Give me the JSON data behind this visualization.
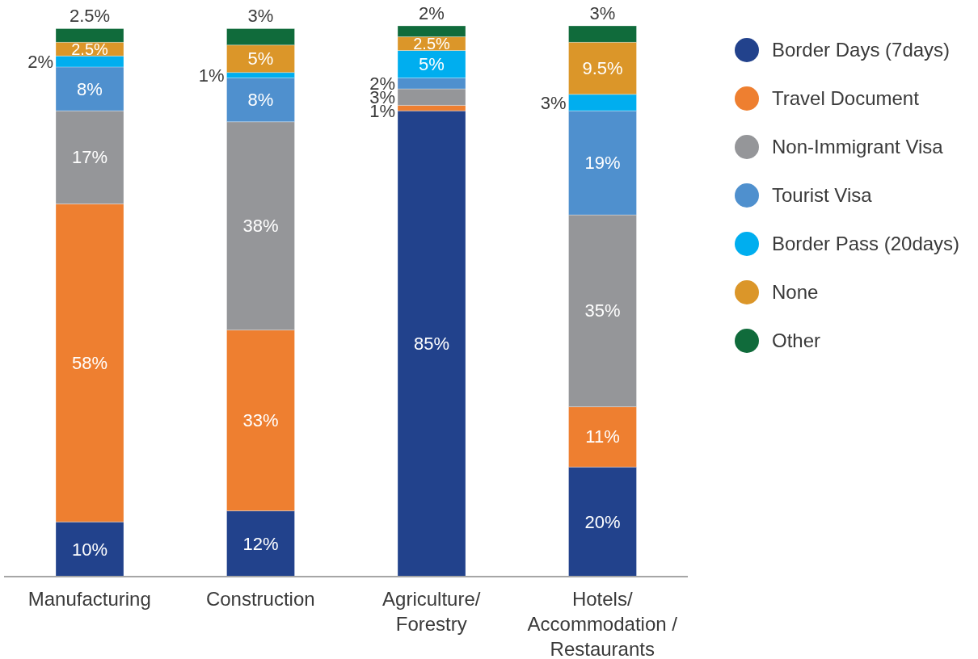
{
  "chart_data": {
    "type": "bar",
    "stacked": true,
    "legend": "top right",
    "tick_labels": "x",
    "categories": [
      "Manufacturing",
      "Construction",
      "Agriculture/ Forestry",
      "Hotels/ Accommodation / Restaurants"
    ],
    "series": [
      {
        "name": "Border Days (7days)",
        "color": "#22428c",
        "values": [
          10,
          12,
          85,
          20
        ],
        "value_labels": [
          "10%",
          "12%",
          "85%",
          "20%"
        ]
      },
      {
        "name": "Travel Document",
        "color": "#ee7f30",
        "values": [
          58,
          33,
          1,
          11
        ],
        "value_labels": [
          "58%",
          "33%",
          "1%",
          "11%"
        ]
      },
      {
        "name": "Non-Immigrant Visa",
        "color": "#959699",
        "values": [
          17,
          38,
          3,
          35
        ],
        "value_labels": [
          "17%",
          "38%",
          "3%",
          "35%"
        ]
      },
      {
        "name": "Tourist Visa",
        "color": "#4f90ce",
        "values": [
          8,
          8,
          2,
          19
        ],
        "value_labels": [
          "8%",
          "8%",
          "2%",
          "19%"
        ]
      },
      {
        "name": "Border Pass (20days)",
        "color": "#00aeef",
        "values": [
          2,
          1,
          5,
          3
        ],
        "value_labels": [
          "2%",
          "1%",
          "5%",
          "3%"
        ]
      },
      {
        "name": "None",
        "color": "#db9629",
        "values": [
          2.5,
          5,
          2.5,
          9.5
        ],
        "value_labels": [
          "2.5%",
          "5%",
          "2.5%",
          "9.5%"
        ]
      },
      {
        "name": "Other",
        "color": "#106b3b",
        "values": [
          2.5,
          3,
          2,
          3
        ],
        "value_labels": [
          "2.5%",
          "3%",
          "2%",
          "3%"
        ]
      }
    ]
  }
}
